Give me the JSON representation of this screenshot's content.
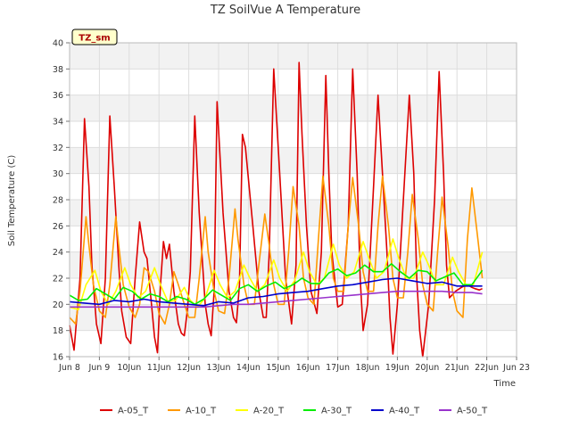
{
  "chart_data": {
    "type": "line",
    "title": "TZ SoilVue A Temperature",
    "xlabel": "Time",
    "ylabel": "Soil Temperature (C)",
    "badge": "TZ_sm",
    "xlim": [
      8,
      23
    ],
    "ylim": [
      16,
      40
    ],
    "y_ticks": [
      16,
      18,
      20,
      22,
      24,
      26,
      28,
      30,
      32,
      34,
      36,
      38,
      40
    ],
    "x_ticks": [
      {
        "value": 8,
        "label": "Jun 8"
      },
      {
        "value": 9,
        "label": "Jun 9"
      },
      {
        "value": 10,
        "label": "10Jun"
      },
      {
        "value": 11,
        "label": "11Jun"
      },
      {
        "value": 12,
        "label": "12Jun"
      },
      {
        "value": 13,
        "label": "13Jun"
      },
      {
        "value": 14,
        "label": "14Jun"
      },
      {
        "value": 15,
        "label": "15Jun"
      },
      {
        "value": 16,
        "label": "16Jun"
      },
      {
        "value": 17,
        "label": "17Jun"
      },
      {
        "value": 18,
        "label": "18Jun"
      },
      {
        "value": 19,
        "label": "19Jun"
      },
      {
        "value": 20,
        "label": "20Jun"
      },
      {
        "value": 21,
        "label": "21Jun"
      },
      {
        "value": 22,
        "label": "22Jun"
      },
      {
        "value": 23,
        "label": "Jun 23"
      }
    ],
    "grid": true,
    "legend_position": "bottom",
    "series": [
      {
        "name": "A-05_T",
        "color": "#dd0000",
        "x": [
          8.0,
          8.15,
          8.35,
          8.5,
          8.65,
          8.75,
          8.9,
          9.05,
          9.2,
          9.35,
          9.5,
          9.65,
          9.75,
          9.9,
          10.05,
          10.2,
          10.35,
          10.5,
          10.6,
          10.75,
          10.85,
          10.95,
          11.05,
          11.15,
          11.25,
          11.35,
          11.5,
          11.65,
          11.75,
          11.85,
          11.95,
          12.05,
          12.2,
          12.35,
          12.55,
          12.65,
          12.75,
          12.85,
          12.95,
          13.15,
          13.35,
          13.5,
          13.6,
          13.7,
          13.8,
          13.9,
          14.15,
          14.35,
          14.5,
          14.6,
          14.7,
          14.85,
          15.05,
          15.25,
          15.45,
          15.6,
          15.7,
          15.8,
          15.95,
          16.1,
          16.3,
          16.45,
          16.6,
          16.7,
          16.8,
          17.0,
          17.15,
          17.35,
          17.5,
          17.65,
          17.75,
          17.85,
          18.0,
          18.2,
          18.35,
          18.5,
          18.65,
          18.75,
          18.85,
          19.0,
          19.2,
          19.4,
          19.55,
          19.65,
          19.75,
          19.85,
          20.05,
          20.25,
          20.4,
          20.55,
          20.65,
          20.75,
          20.95,
          21.15,
          21.35,
          21.5,
          21.6,
          21.75,
          21.85
        ],
        "y": [
          18.4,
          16.5,
          22.0,
          34.2,
          29.0,
          23.0,
          18.5,
          17.0,
          22.0,
          34.4,
          29.0,
          23.0,
          19.5,
          17.5,
          17.0,
          22.0,
          26.3,
          24.0,
          23.5,
          20.0,
          17.5,
          16.3,
          21.5,
          24.8,
          23.5,
          24.6,
          21.0,
          18.5,
          17.8,
          17.6,
          19.5,
          22.5,
          34.4,
          27.0,
          20.0,
          18.5,
          17.6,
          21.0,
          35.5,
          27.0,
          21.0,
          19.0,
          18.6,
          21.5,
          33.0,
          32.0,
          26.0,
          21.0,
          19.0,
          19.0,
          24.0,
          38.0,
          30.0,
          22.0,
          18.5,
          23.0,
          38.5,
          33.0,
          26.0,
          21.0,
          19.3,
          24.0,
          37.5,
          30.0,
          24.0,
          19.8,
          20.0,
          26.0,
          38.0,
          30.0,
          22.0,
          18.0,
          20.0,
          29.0,
          36.0,
          30.0,
          24.0,
          19.0,
          16.2,
          20.0,
          28.0,
          36.0,
          30.0,
          22.0,
          18.0,
          16.0,
          20.0,
          28.0,
          37.8,
          30.0,
          23.0,
          20.5,
          21.0,
          21.3,
          21.5,
          21.3,
          21.2,
          21.1,
          21.2
        ]
      },
      {
        "name": "A-10_T",
        "color": "#ff9900",
        "x": [
          8.0,
          8.2,
          8.35,
          8.55,
          8.65,
          8.8,
          9.0,
          9.2,
          9.35,
          9.55,
          9.65,
          9.8,
          10.0,
          10.2,
          10.35,
          10.5,
          10.65,
          10.85,
          11.0,
          11.2,
          11.35,
          11.5,
          11.65,
          11.85,
          12.0,
          12.2,
          12.35,
          12.55,
          12.65,
          12.85,
          13.0,
          13.2,
          13.35,
          13.55,
          13.65,
          13.85,
          14.0,
          14.2,
          14.35,
          14.55,
          14.7,
          14.85,
          15.0,
          15.2,
          15.35,
          15.5,
          15.7,
          15.85,
          16.0,
          16.2,
          16.35,
          16.5,
          16.7,
          16.85,
          17.0,
          17.2,
          17.35,
          17.5,
          17.7,
          17.85,
          18.0,
          18.2,
          18.35,
          18.5,
          18.7,
          18.85,
          19.0,
          19.2,
          19.35,
          19.5,
          19.7,
          19.85,
          20.0,
          20.2,
          20.35,
          20.5,
          20.7,
          20.85,
          21.0,
          21.2,
          21.35,
          21.5,
          21.7,
          21.85
        ],
        "y": [
          19.0,
          18.5,
          21.0,
          26.7,
          24.5,
          21.5,
          19.5,
          19.0,
          21.5,
          26.7,
          24.5,
          21.5,
          19.8,
          19.0,
          20.0,
          22.8,
          22.5,
          21.0,
          19.3,
          18.5,
          20.0,
          22.5,
          21.5,
          20.0,
          19.0,
          19.0,
          22.0,
          26.7,
          24.0,
          21.0,
          19.5,
          19.3,
          22.0,
          27.3,
          25.0,
          21.5,
          20.0,
          20.0,
          23.0,
          26.9,
          24.5,
          21.5,
          20.0,
          20.0,
          24.0,
          29.0,
          26.0,
          22.0,
          20.5,
          20.0,
          25.0,
          29.8,
          26.0,
          22.0,
          21.0,
          21.0,
          26.0,
          29.7,
          26.0,
          22.5,
          21.0,
          21.0,
          26.0,
          29.8,
          26.0,
          22.0,
          20.5,
          20.5,
          24.0,
          28.4,
          25.0,
          21.5,
          20.0,
          19.5,
          24.0,
          28.2,
          24.5,
          21.0,
          19.5,
          19.0,
          25.0,
          28.9,
          25.0,
          22.0
        ]
      },
      {
        "name": "A-20_T",
        "color": "#ffff00",
        "x": [
          8.0,
          8.3,
          8.55,
          8.85,
          9.05,
          9.3,
          9.55,
          9.85,
          10.05,
          10.3,
          10.55,
          10.85,
          11.05,
          11.3,
          11.55,
          11.85,
          12.05,
          12.3,
          12.55,
          12.85,
          13.05,
          13.3,
          13.55,
          13.85,
          14.05,
          14.3,
          14.55,
          14.85,
          15.05,
          15.3,
          15.55,
          15.85,
          16.05,
          16.3,
          16.55,
          16.85,
          17.05,
          17.3,
          17.55,
          17.85,
          18.05,
          18.3,
          18.55,
          18.85,
          19.05,
          19.3,
          19.55,
          19.85,
          20.05,
          20.3,
          20.55,
          20.85,
          21.05,
          21.3,
          21.55,
          21.85
        ],
        "y": [
          19.8,
          19.6,
          21.5,
          22.6,
          21.0,
          20.0,
          21.0,
          22.8,
          21.5,
          20.5,
          21.0,
          22.8,
          21.5,
          20.2,
          20.3,
          21.3,
          20.3,
          19.8,
          20.5,
          22.6,
          21.5,
          20.5,
          21.0,
          23.0,
          22.0,
          21.0,
          21.5,
          23.4,
          22.0,
          21.0,
          21.8,
          24.0,
          22.5,
          21.5,
          22.0,
          24.6,
          23.0,
          22.0,
          22.5,
          24.8,
          23.5,
          22.0,
          22.5,
          25.0,
          23.5,
          22.0,
          22.0,
          24.0,
          23.0,
          21.5,
          21.5,
          23.6,
          22.5,
          21.5,
          21.5,
          24.0
        ]
      },
      {
        "name": "A-30_T",
        "color": "#00ee00",
        "x": [
          8.0,
          8.3,
          8.6,
          8.9,
          9.2,
          9.5,
          9.8,
          10.1,
          10.4,
          10.7,
          11.0,
          11.3,
          11.6,
          11.9,
          12.2,
          12.5,
          12.8,
          13.1,
          13.4,
          13.7,
          14.0,
          14.3,
          14.6,
          14.9,
          15.2,
          15.5,
          15.8,
          16.1,
          16.4,
          16.7,
          17.0,
          17.3,
          17.6,
          17.9,
          18.2,
          18.5,
          18.8,
          19.1,
          19.4,
          19.7,
          20.0,
          20.3,
          20.6,
          20.9,
          21.2,
          21.5,
          21.85
        ],
        "y": [
          20.7,
          20.3,
          20.4,
          21.2,
          20.8,
          20.4,
          21.3,
          21.0,
          20.4,
          20.8,
          20.6,
          20.2,
          20.6,
          20.4,
          20.0,
          20.4,
          21.1,
          20.7,
          20.3,
          21.2,
          21.5,
          21.0,
          21.4,
          21.7,
          21.2,
          21.5,
          22.0,
          21.6,
          21.6,
          22.4,
          22.7,
          22.2,
          22.4,
          23.0,
          22.5,
          22.5,
          23.1,
          22.5,
          22.0,
          22.6,
          22.5,
          21.8,
          22.1,
          22.4,
          21.5,
          21.5,
          22.6
        ]
      },
      {
        "name": "A-40_T",
        "color": "#0000cc",
        "x": [
          8.0,
          8.5,
          9.0,
          9.5,
          10.0,
          10.5,
          11.0,
          11.5,
          12.0,
          12.5,
          13.0,
          13.5,
          14.0,
          14.5,
          15.0,
          15.5,
          16.0,
          16.5,
          17.0,
          17.5,
          18.0,
          18.5,
          19.0,
          19.5,
          20.0,
          20.5,
          21.0,
          21.5,
          21.85
        ],
        "y": [
          20.2,
          20.1,
          20.0,
          20.3,
          20.2,
          20.4,
          20.2,
          20.1,
          20.0,
          19.9,
          20.2,
          20.1,
          20.5,
          20.6,
          20.8,
          20.9,
          21.0,
          21.2,
          21.4,
          21.5,
          21.7,
          21.9,
          22.0,
          21.8,
          21.6,
          21.7,
          21.4,
          21.4,
          21.4
        ]
      },
      {
        "name": "A-50_T",
        "color": "#9933cc",
        "x": [
          8.0,
          8.5,
          9.0,
          9.5,
          10.0,
          10.5,
          11.0,
          11.5,
          12.0,
          12.5,
          13.0,
          13.5,
          14.0,
          14.5,
          15.0,
          15.5,
          16.0,
          16.5,
          17.0,
          17.5,
          18.0,
          18.5,
          19.0,
          19.5,
          20.0,
          20.5,
          21.0,
          21.5,
          21.85
        ],
        "y": [
          19.8,
          19.8,
          19.8,
          19.8,
          19.8,
          19.8,
          19.8,
          19.8,
          19.8,
          19.8,
          19.9,
          20.0,
          20.0,
          20.1,
          20.2,
          20.3,
          20.4,
          20.5,
          20.6,
          20.7,
          20.8,
          20.9,
          21.0,
          21.0,
          21.0,
          21.0,
          20.9,
          20.9,
          20.8
        ]
      }
    ]
  }
}
